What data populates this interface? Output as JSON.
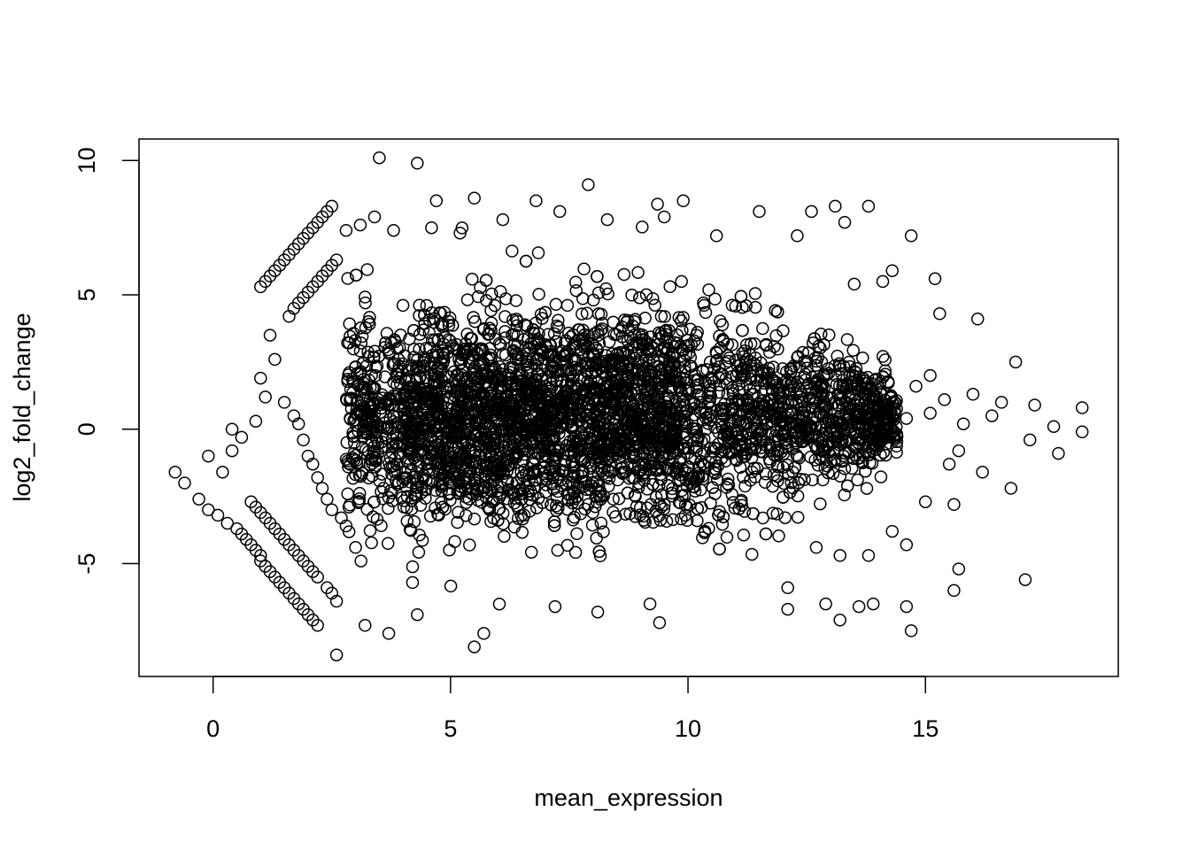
{
  "chart_data": {
    "type": "scatter",
    "title": "",
    "xlabel": "mean_expression",
    "ylabel": "log2_fold_change",
    "xlim": [
      -1.56,
      19.06
    ],
    "ylim": [
      -9.2,
      10.8
    ],
    "xticks": [
      0,
      5,
      10,
      15
    ],
    "yticks": [
      -5,
      0,
      5,
      10
    ],
    "xtick_labels": [
      "0",
      "5",
      "10",
      "15"
    ],
    "ytick_labels": [
      "-5",
      "0",
      "5",
      "10"
    ],
    "grid": false,
    "legend": "none",
    "marker": "open-circle",
    "point_color": "#000000",
    "series": [
      {
        "points": [
          [
            -0.8,
            -1.6
          ],
          [
            -0.6,
            -2.0
          ],
          [
            -0.3,
            -2.6
          ],
          [
            -0.1,
            -1.0
          ],
          [
            -0.1,
            -3.0
          ],
          [
            0.1,
            -3.2
          ],
          [
            0.2,
            -1.6
          ],
          [
            0.3,
            -3.5
          ],
          [
            0.4,
            -0.8
          ],
          [
            0.4,
            0.0
          ],
          [
            0.5,
            -3.7
          ],
          [
            0.6,
            -0.3
          ],
          [
            0.6,
            -3.9
          ],
          [
            0.7,
            -4.1
          ],
          [
            0.8,
            -4.3
          ],
          [
            0.9,
            -4.5
          ],
          [
            1.0,
            -4.7
          ],
          [
            1.0,
            -4.9
          ],
          [
            1.1,
            -5.1
          ],
          [
            1.2,
            -5.3
          ],
          [
            1.3,
            -5.5
          ],
          [
            1.4,
            -5.7
          ],
          [
            1.5,
            -5.9
          ],
          [
            1.6,
            -6.1
          ],
          [
            1.7,
            -6.3
          ],
          [
            1.8,
            -6.5
          ],
          [
            1.9,
            -6.7
          ],
          [
            2.0,
            -6.9
          ],
          [
            2.1,
            -7.1
          ],
          [
            2.2,
            -7.3
          ],
          [
            0.8,
            -2.7
          ],
          [
            0.9,
            -2.9
          ],
          [
            1.0,
            -3.1
          ],
          [
            1.1,
            -3.3
          ],
          [
            1.2,
            -3.5
          ],
          [
            1.3,
            -3.7
          ],
          [
            1.4,
            -3.9
          ],
          [
            1.5,
            -4.1
          ],
          [
            1.6,
            -4.3
          ],
          [
            1.7,
            -4.5
          ],
          [
            1.8,
            -4.7
          ],
          [
            1.9,
            -4.9
          ],
          [
            2.0,
            -5.1
          ],
          [
            2.1,
            -5.3
          ],
          [
            2.2,
            -5.5
          ],
          [
            2.4,
            -5.9
          ],
          [
            2.5,
            -6.1
          ],
          [
            2.6,
            -6.4
          ],
          [
            2.6,
            -8.4
          ],
          [
            1.0,
            5.3
          ],
          [
            1.1,
            5.5
          ],
          [
            1.2,
            5.7
          ],
          [
            1.3,
            5.9
          ],
          [
            1.4,
            6.1
          ],
          [
            1.5,
            6.3
          ],
          [
            1.6,
            6.5
          ],
          [
            1.7,
            6.7
          ],
          [
            1.8,
            6.9
          ],
          [
            1.9,
            7.1
          ],
          [
            2.0,
            7.3
          ],
          [
            2.1,
            7.5
          ],
          [
            2.2,
            7.7
          ],
          [
            2.3,
            7.9
          ],
          [
            2.4,
            8.1
          ],
          [
            2.5,
            8.3
          ],
          [
            1.6,
            4.2
          ],
          [
            1.7,
            4.5
          ],
          [
            1.8,
            4.7
          ],
          [
            1.9,
            4.9
          ],
          [
            2.0,
            5.1
          ],
          [
            2.1,
            5.3
          ],
          [
            2.2,
            5.5
          ],
          [
            2.3,
            5.7
          ],
          [
            2.4,
            5.9
          ],
          [
            2.5,
            6.1
          ],
          [
            2.6,
            6.3
          ],
          [
            1.2,
            3.5
          ],
          [
            1.3,
            2.6
          ],
          [
            1.0,
            1.9
          ],
          [
            1.1,
            1.2
          ],
          [
            0.9,
            0.3
          ],
          [
            1.5,
            1.0
          ],
          [
            1.7,
            0.5
          ],
          [
            1.8,
            0.2
          ],
          [
            1.9,
            -0.4
          ],
          [
            2.0,
            -1.0
          ],
          [
            2.1,
            -1.3
          ],
          [
            2.2,
            -1.8
          ],
          [
            2.3,
            -2.2
          ],
          [
            2.4,
            -2.6
          ],
          [
            2.5,
            -3.0
          ],
          [
            2.7,
            -3.3
          ],
          [
            2.8,
            -3.6
          ],
          [
            3.0,
            -4.4
          ],
          [
            3.2,
            -7.3
          ],
          [
            3.7,
            -7.6
          ],
          [
            4.3,
            -6.9
          ],
          [
            5.5,
            -8.1
          ],
          [
            5.7,
            -7.6
          ],
          [
            7.2,
            -6.6
          ],
          [
            8.1,
            -6.8
          ],
          [
            9.2,
            -6.5
          ],
          [
            9.4,
            -7.2
          ],
          [
            3.5,
            10.1
          ],
          [
            4.3,
            9.9
          ],
          [
            4.7,
            8.5
          ],
          [
            5.5,
            8.6
          ],
          [
            6.8,
            8.5
          ],
          [
            7.9,
            9.1
          ],
          [
            9.9,
            8.5
          ],
          [
            11.5,
            8.1
          ],
          [
            12.6,
            8.1
          ],
          [
            13.1,
            8.3
          ],
          [
            13.8,
            8.3
          ],
          [
            2.8,
            7.4
          ],
          [
            3.1,
            7.6
          ],
          [
            3.4,
            7.9
          ],
          [
            3.8,
            7.4
          ],
          [
            4.6,
            7.5
          ],
          [
            5.2,
            7.3
          ],
          [
            6.1,
            7.8
          ],
          [
            7.3,
            8.1
          ],
          [
            8.3,
            7.8
          ],
          [
            9.5,
            7.9
          ],
          [
            10.6,
            7.2
          ],
          [
            12.3,
            7.2
          ],
          [
            13.3,
            7.7
          ],
          [
            14.7,
            7.2
          ],
          [
            15.2,
            5.6
          ],
          [
            16.1,
            4.1
          ],
          [
            15.3,
            4.3
          ],
          [
            14.1,
            5.5
          ],
          [
            14.3,
            5.9
          ],
          [
            13.5,
            5.4
          ],
          [
            16.9,
            2.5
          ],
          [
            17.3,
            0.9
          ],
          [
            17.7,
            0.1
          ],
          [
            18.3,
            0.8
          ],
          [
            18.3,
            -0.1
          ],
          [
            17.8,
            -0.9
          ],
          [
            17.2,
            -0.4
          ],
          [
            16.8,
            -2.2
          ],
          [
            16.2,
            -1.6
          ],
          [
            15.7,
            -0.8
          ],
          [
            15.5,
            -1.3
          ],
          [
            15.0,
            -2.7
          ],
          [
            15.6,
            -2.8
          ],
          [
            15.7,
            -5.2
          ],
          [
            15.6,
            -6.0
          ],
          [
            14.3,
            -3.8
          ],
          [
            14.6,
            -4.3
          ],
          [
            14.6,
            -6.6
          ],
          [
            14.7,
            -7.5
          ],
          [
            13.9,
            -6.5
          ],
          [
            13.6,
            -6.6
          ],
          [
            13.2,
            -7.1
          ],
          [
            12.9,
            -6.5
          ],
          [
            12.1,
            -6.7
          ],
          [
            12.1,
            -5.9
          ],
          [
            12.7,
            -4.4
          ],
          [
            13.2,
            -4.7
          ],
          [
            13.8,
            -4.7
          ],
          [
            17.1,
            -5.6
          ],
          [
            16.6,
            1.0
          ],
          [
            16.4,
            0.5
          ],
          [
            16.0,
            1.3
          ],
          [
            15.8,
            0.2
          ],
          [
            15.4,
            1.1
          ],
          [
            15.1,
            2.0
          ],
          [
            15.1,
            0.6
          ],
          [
            14.8,
            1.6
          ],
          [
            14.6,
            0.4
          ],
          [
            14.3,
            1.0
          ],
          [
            14.0,
            -0.4
          ]
        ]
      }
    ]
  }
}
